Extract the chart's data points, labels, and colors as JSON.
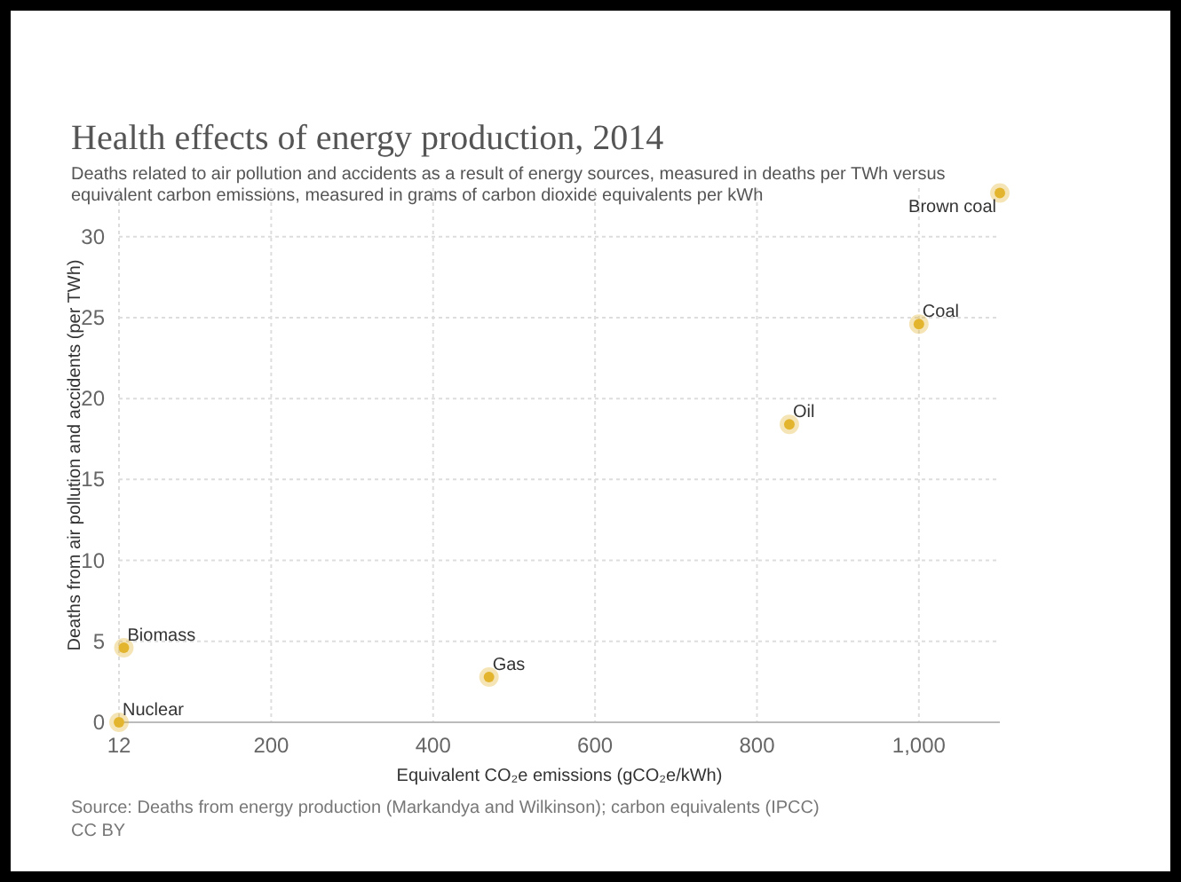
{
  "chart_data": {
    "type": "scatter",
    "title": "Health effects of energy production, 2014",
    "subtitle": "Deaths related to air pollution and accidents as a result of energy sources, measured in deaths per TWh versus equivalent carbon emissions, measured in grams of carbon dioxide equivalents per kWh",
    "xlabel": "Equivalent CO₂e emissions (gCO₂e/kWh)",
    "ylabel": "Deaths from air pollution and accidents (per TWh)",
    "x": [
      12,
      18,
      469,
      840,
      1000,
      1100
    ],
    "series": [
      {
        "color": "#e3b52f",
        "values": [
          0,
          4.6,
          2.8,
          18.4,
          24.6,
          32.7
        ]
      }
    ],
    "xlim": [
      12,
      1100
    ],
    "xticks": [
      12,
      200,
      400,
      600,
      800,
      {
        "value": 1000,
        "label": "1,000"
      }
    ],
    "ylim": [
      0,
      33
    ],
    "yticks": [
      0,
      5,
      10,
      15,
      20,
      25,
      30
    ],
    "grid": true,
    "marker": "circle",
    "annotations": [
      {
        "text": "Nuclear",
        "x": 12,
        "y": 0
      },
      {
        "text": "Biomass",
        "x": 18,
        "y": 4.6
      },
      {
        "text": "Gas",
        "x": 469,
        "y": 2.8
      },
      {
        "text": "Oil",
        "x": 840,
        "y": 18.4
      },
      {
        "text": "Coal",
        "x": 1000,
        "y": 24.6
      },
      {
        "text": "Brown coal",
        "x": 1100,
        "y": 32.7
      },
      "Source: Deaths from energy production (Markandya and Wilkinson); carbon equivalents (IPCC)",
      "CC BY"
    ]
  }
}
